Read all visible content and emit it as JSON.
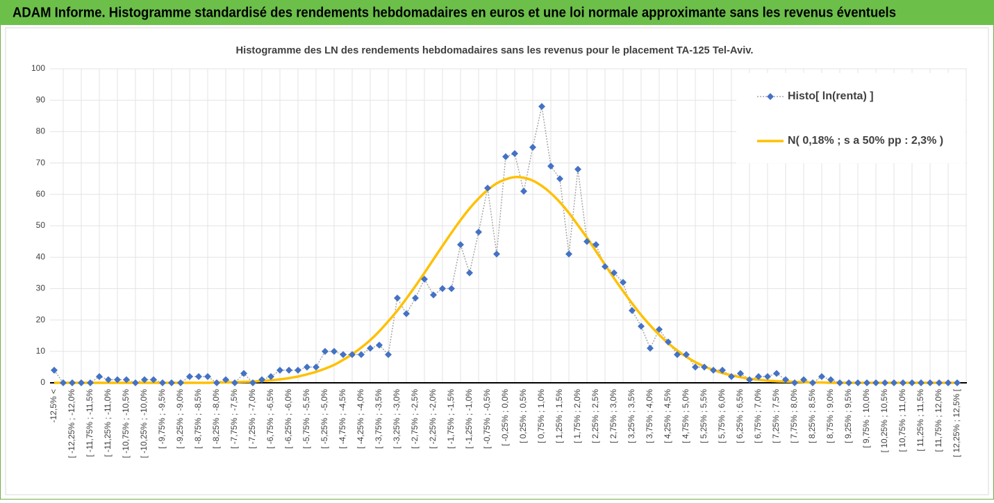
{
  "header": {
    "title": "ADAM Informe. Histogramme standardisé des rendements hebdomadaires en euros et une loi normale approximante sans les revenus éventuels"
  },
  "chart_data": {
    "type": "line",
    "title": "Histogramme des LN des rendements hebdomadaires sans les revenus pour le placement TA-125 Tel-Aviv.",
    "categories": [
      "-12,5% <",
      null,
      "[ -12,25% ; -12,0%",
      null,
      "[ -11,75% ; -11,5%",
      null,
      "[ -11,25% ; -11,0%",
      null,
      "[ -10,75% ; -10,5%",
      null,
      "[ -10,25% ; -10,0%",
      null,
      "[ -9,75% ; -9,5%",
      null,
      "[ -9,25% ; -9,0%",
      null,
      "[ -8,75% ; -8,5%",
      null,
      "[ -8,25% ; -8,0%",
      null,
      "[ -7,75% ; -7,5%",
      null,
      "[ -7,25% ; -7,0%",
      null,
      "[ -6,75% ; -6,5%",
      null,
      "[ -6,25% ; -6,0%",
      null,
      "[ -5,75% ; -5,5%",
      null,
      "[ -5,25% ; -5,0%",
      null,
      "[ -4,75% ; -4,5%",
      null,
      "[ -4,25% ; -4,0%",
      null,
      "[ -3,75% ; -3,5%",
      null,
      "[ -3,25% ; -3,0%",
      null,
      "[ -2,75% ; -2,5%",
      null,
      "[ -2,25% ; -2,0%",
      null,
      "[ -1,75% ; -1,5%",
      null,
      "[ -1,25% ; -1,0%",
      null,
      "[ -0,75% ; -0,5%",
      null,
      "[ -0,25% ; 0,0%",
      null,
      "[ 0,25% ; 0,5%",
      null,
      "[ 0,75% ; 1,0%",
      null,
      "[ 1,25% ; 1,5%",
      null,
      "[ 1,75% ; 2,0%",
      null,
      "[ 2,25% ; 2,5%",
      null,
      "[ 2,75% ; 3,0%",
      null,
      "[ 3,25% ; 3,5%",
      null,
      "[ 3,75% ; 4,0%",
      null,
      "[ 4,25% ; 4,5%",
      null,
      "[ 4,75% ; 5,0%",
      null,
      "[ 5,25% ; 5,5%",
      null,
      "[ 5,75% ; 6,0%",
      null,
      "[ 6,25% ; 6,5%",
      null,
      "[ 6,75% ; 7,0%",
      null,
      "[ 7,25% ; 7,5%",
      null,
      "[ 7,75% ; 8,0%",
      null,
      "[ 8,25% ; 8,5%",
      null,
      "[ 8,75% ; 9,0%",
      null,
      "[ 9,25% ; 9,5%",
      null,
      "[ 9,75% ; 10,0%",
      null,
      "[ 10,25% ; 10,5%",
      null,
      "[ 10,75% ; 11,0%",
      null,
      "[ 11,25% ; 11,5%",
      null,
      "[ 11,75% ; 12,0%",
      null,
      "[ 12,25% ; 12,5% ["
    ],
    "series": [
      {
        "name": "Histo[ ln(renta) ]",
        "color": "#4472c4",
        "line_color": "#a6a6a6",
        "dash": "dotted",
        "marker": "diamond",
        "smooth": false,
        "values": [
          4,
          0,
          0,
          0,
          0,
          2,
          1,
          1,
          1,
          0,
          1,
          1,
          0,
          0,
          0,
          2,
          2,
          2,
          0,
          1,
          0,
          3,
          0,
          1,
          2,
          4,
          4,
          4,
          5,
          5,
          10,
          10,
          9,
          9,
          9,
          11,
          12,
          9,
          27,
          22,
          27,
          33,
          28,
          30,
          30,
          44,
          35,
          48,
          62,
          41,
          72,
          73,
          61,
          75,
          88,
          69,
          65,
          41,
          68,
          45,
          44,
          37,
          35,
          32,
          23,
          18,
          11,
          17,
          13,
          9,
          9,
          5,
          5,
          4,
          4,
          2,
          3,
          1,
          2,
          2,
          3,
          1,
          0,
          1,
          0,
          2,
          1,
          0,
          0,
          0,
          0,
          0,
          0,
          0,
          0,
          0,
          0,
          0,
          0,
          0,
          0
        ]
      },
      {
        "name": "N( 0,18% ; s a 50% pp : 2,3% )",
        "color": "#ffc000",
        "line_color": "#ffc000",
        "dash": "solid",
        "marker": "none",
        "smooth": true,
        "values": [
          0,
          0,
          0,
          0,
          0,
          0,
          0,
          0,
          0,
          0,
          0,
          0,
          0,
          0,
          0,
          0,
          0,
          0,
          0.1,
          0.1,
          0.2,
          0.3,
          0.4,
          0.6,
          0.8,
          1.1,
          1.5,
          2.0,
          2.7,
          3.5,
          4.5,
          5.7,
          7.3,
          9.1,
          11.2,
          13.6,
          16.4,
          19.6,
          23.0,
          26.8,
          30.8,
          35.0,
          39.3,
          43.6,
          47.8,
          51.8,
          55.5,
          58.7,
          61.4,
          63.5,
          64.8,
          65.5,
          65.3,
          64.4,
          62.7,
          60.4,
          57.5,
          54.1,
          50.2,
          46.2,
          41.9,
          37.6,
          33.3,
          29.2,
          25.3,
          21.6,
          18.3,
          15.3,
          12.6,
          10.3,
          8.3,
          6.6,
          5.2,
          4.1,
          3.1,
          2.4,
          1.8,
          1.3,
          1.0,
          0.7,
          0.5,
          0.4,
          0.3,
          0.2,
          0.1,
          0.1,
          0,
          0,
          0,
          0,
          0,
          0,
          0,
          0,
          0,
          0,
          0,
          0,
          0,
          0,
          0
        ]
      }
    ],
    "ylim": [
      0,
      100
    ],
    "yticks": [
      0,
      10,
      20,
      30,
      40,
      50,
      60,
      70,
      80,
      90,
      100
    ],
    "grid": true,
    "legend": "upper right"
  }
}
